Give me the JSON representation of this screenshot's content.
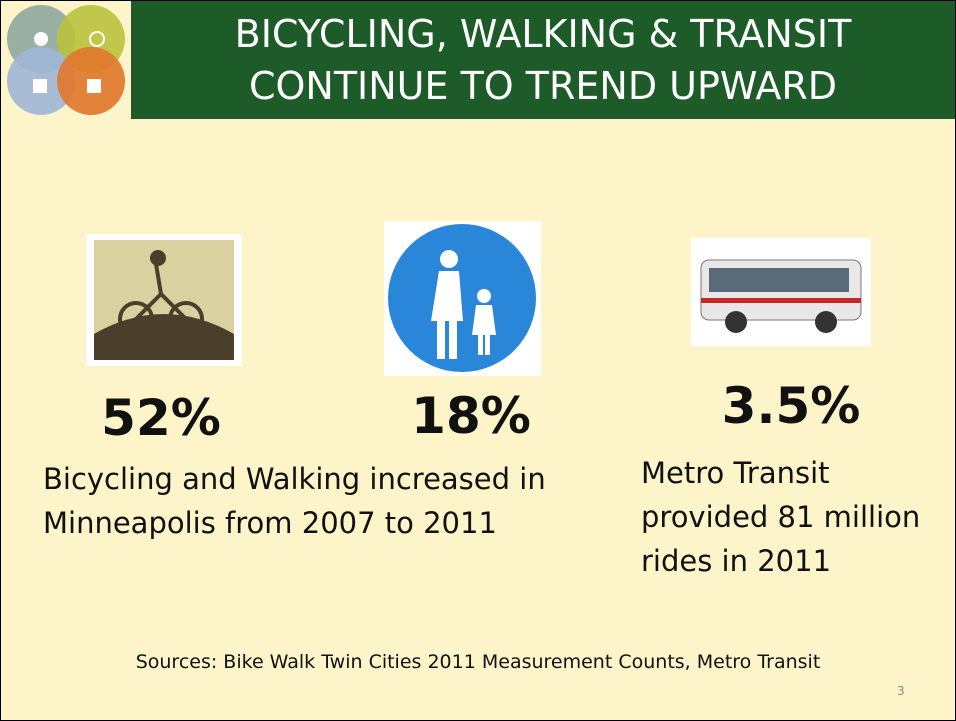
{
  "header": {
    "title": [
      "BICYCLING, WALKING & TRANSIT",
      "CONTINUE TO TREND UPWARD"
    ]
  },
  "stats": [
    {
      "value": "52%"
    },
    {
      "value": "18%"
    },
    {
      "value": "3.5%"
    }
  ],
  "descriptions": {
    "walking_biking": [
      "Bicycling and Walking increased in",
      "Minneapolis from 2007 to 2011"
    ],
    "transit": [
      "Metro Transit",
      "provided 81 million",
      "rides in 2011"
    ]
  },
  "footer": {
    "sources": "Sources: Bike Walk Twin Cities 2011 Measurement Counts, Metro Transit",
    "page_number": "3"
  }
}
